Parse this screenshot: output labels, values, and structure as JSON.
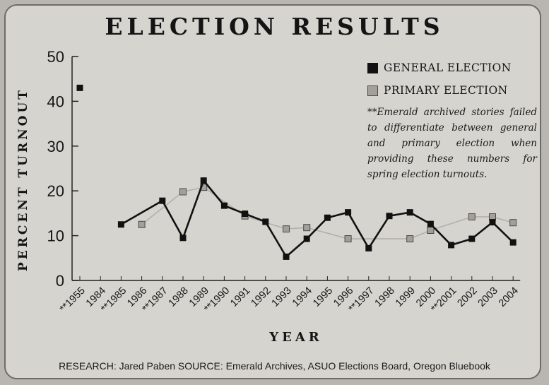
{
  "chart_data": {
    "type": "line",
    "title": "ELECTION RESULTS",
    "xlabel": "YEAR",
    "ylabel": "PERCENT TURNOUT",
    "ylim": [
      0,
      50
    ],
    "yticks": [
      0,
      10,
      20,
      30,
      40,
      50
    ],
    "grid": false,
    "legend_position": "top-right",
    "categories": [
      "**1955",
      "1984",
      "**1985",
      "1986",
      "**1987",
      "1988",
      "1989",
      "**1990",
      "1991",
      "1992",
      "1993",
      "1994",
      "1995",
      "1996",
      "**1997",
      "1998",
      "1999",
      "2000",
      "**2001",
      "2002",
      "2003",
      "2004"
    ],
    "series": [
      {
        "name": "GENERAL ELECTION",
        "color": "#111111",
        "values": [
          43,
          null,
          12.5,
          null,
          17.8,
          9.5,
          22.3,
          16.7,
          14.9,
          13.1,
          5.3,
          9.3,
          14,
          15.2,
          7.2,
          14.4,
          15.2,
          12.6,
          7.9,
          9.3,
          13,
          8.5
        ]
      },
      {
        "name": "PRIMARY ELECTION",
        "color": "#a3a09c",
        "values": [
          null,
          null,
          null,
          12.5,
          null,
          19.8,
          20.8,
          null,
          14.4,
          null,
          11.5,
          11.8,
          null,
          9.3,
          null,
          null,
          9.3,
          11.2,
          null,
          14.2,
          14.2,
          12.9
        ]
      }
    ],
    "note": "**Emerald archived stories failed to differentiate between general and primary election when providing these numbers for spring election turnouts."
  },
  "footer": "RESEARCH: Jared Paben SOURCE: Emerald Archives, ASUO Elections Board, Oregon Bluebook"
}
